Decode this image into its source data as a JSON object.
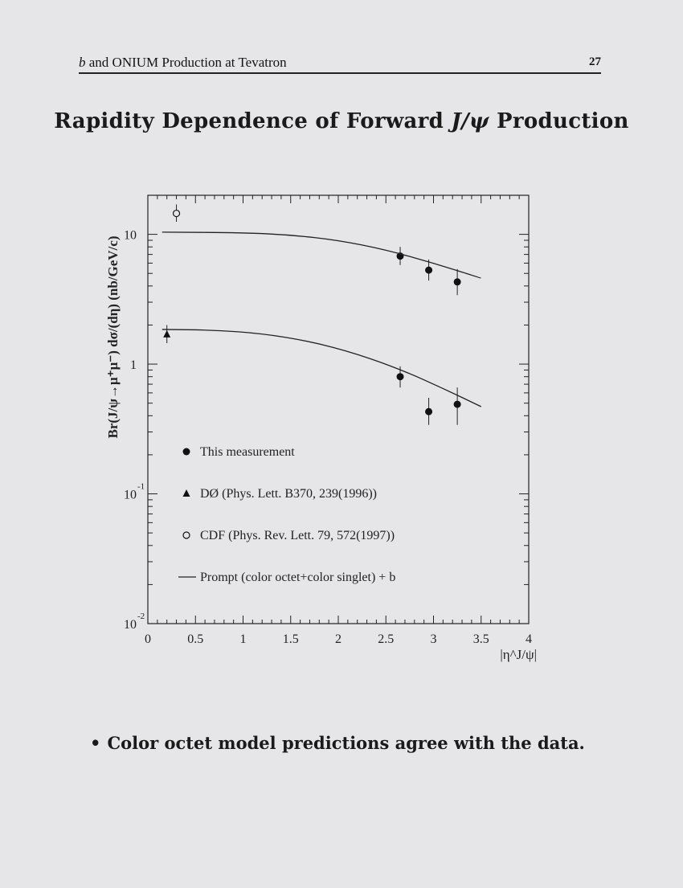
{
  "header": {
    "left_italic": "b",
    "left_text": " and ONIUM Production at Tevatron",
    "page_number": "27"
  },
  "title": {
    "prefix": "Rapidity Dependence of Forward ",
    "symbol": "J/ψ",
    "suffix": " Production"
  },
  "bullet": {
    "symbol": "•",
    "text": "Color octet model predictions agree with the data."
  },
  "chart_data": {
    "type": "scatter",
    "xlabel": "|η^J/ψ|",
    "ylabel": "Br(J/ψ→μ⁺μ⁻) dσ/(dη) (nb/GeV/c)",
    "xlim": [
      0,
      4
    ],
    "ylim": [
      0.01,
      20
    ],
    "ylog": true,
    "x_ticks": [
      "0",
      "0.5",
      "1",
      "1.5",
      "2",
      "2.5",
      "3",
      "3.5",
      "4"
    ],
    "y_ticks": [
      {
        "base": "10",
        "exp": "",
        "value": 10
      },
      {
        "base": "1",
        "exp": "",
        "value": 1
      },
      {
        "base": "10",
        "exp": "-1",
        "value": 0.1
      },
      {
        "base": "10",
        "exp": "-2",
        "value": 0.01
      }
    ],
    "legend": {
      "placement": "bottom-left",
      "entries": [
        {
          "marker": "filled-circle",
          "label": "This measurement"
        },
        {
          "marker": "filled-triangle",
          "label": "DØ (Phys. Lett. B370, 239(1996))"
        },
        {
          "marker": "open-circle",
          "label": "CDF (Phys. Rev. Lett. 79, 572(1997))"
        },
        {
          "marker": "line",
          "label": "Prompt (color octet+color singlet) + b"
        }
      ]
    },
    "series": [
      {
        "marker": "filled-circle",
        "points": [
          {
            "x": 2.65,
            "y": 6.8,
            "lo": 5.8,
            "hi": 8.0
          },
          {
            "x": 2.95,
            "y": 5.3,
            "lo": 4.4,
            "hi": 6.4
          },
          {
            "x": 3.25,
            "y": 4.3,
            "lo": 3.4,
            "hi": 5.4
          },
          {
            "x": 2.65,
            "y": 0.8,
            "lo": 0.66,
            "hi": 0.96
          },
          {
            "x": 2.95,
            "y": 0.43,
            "lo": 0.34,
            "hi": 0.55
          },
          {
            "x": 3.25,
            "y": 0.49,
            "lo": 0.34,
            "hi": 0.66
          }
        ]
      },
      {
        "marker": "filled-triangle",
        "points": [
          {
            "x": 0.2,
            "y": 1.7,
            "lo": 1.45,
            "hi": 2.0
          }
        ]
      },
      {
        "marker": "open-circle",
        "points": [
          {
            "x": 0.3,
            "y": 14.5,
            "lo": 12.5,
            "hi": 17.0
          }
        ]
      },
      {
        "marker": "line",
        "points": [
          {
            "x": 0.15,
            "y": 10.4
          },
          {
            "x": 1.0,
            "y": 10.3
          },
          {
            "x": 1.5,
            "y": 9.9
          },
          {
            "x": 2.0,
            "y": 9.0
          },
          {
            "x": 2.5,
            "y": 7.6
          },
          {
            "x": 3.0,
            "y": 6.0
          },
          {
            "x": 3.5,
            "y": 4.6
          }
        ]
      },
      {
        "marker": "line",
        "points": [
          {
            "x": 0.15,
            "y": 1.85
          },
          {
            "x": 0.7,
            "y": 1.83
          },
          {
            "x": 1.2,
            "y": 1.72
          },
          {
            "x": 1.7,
            "y": 1.5
          },
          {
            "x": 2.2,
            "y": 1.2
          },
          {
            "x": 2.7,
            "y": 0.88
          },
          {
            "x": 3.1,
            "y": 0.65
          },
          {
            "x": 3.5,
            "y": 0.47
          }
        ]
      }
    ]
  }
}
